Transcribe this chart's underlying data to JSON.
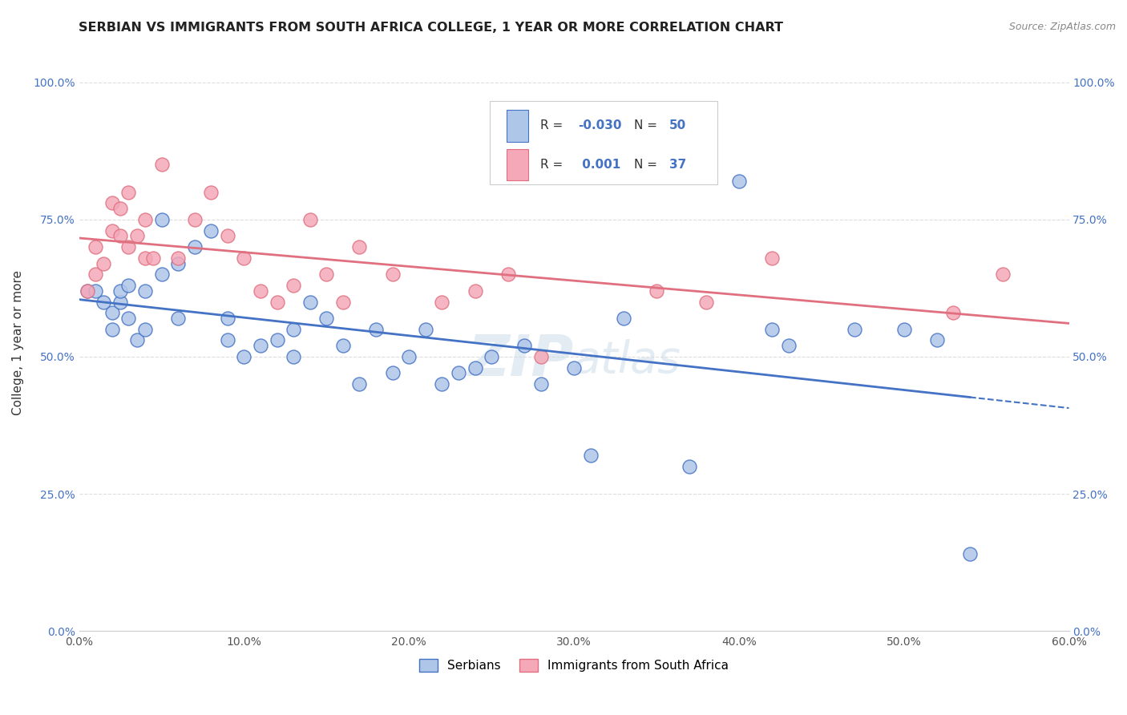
{
  "title": "SERBIAN VS IMMIGRANTS FROM SOUTH AFRICA COLLEGE, 1 YEAR OR MORE CORRELATION CHART",
  "source": "Source: ZipAtlas.com",
  "ylabel": "College, 1 year or more",
  "xlim": [
    0.0,
    0.6
  ],
  "ylim": [
    0.0,
    1.05
  ],
  "ytick_labels": [
    "0.0%",
    "25.0%",
    "50.0%",
    "75.0%",
    "100.0%"
  ],
  "ytick_values": [
    0.0,
    0.25,
    0.5,
    0.75,
    1.0
  ],
  "xtick_values": [
    0.0,
    0.1,
    0.2,
    0.3,
    0.4,
    0.5,
    0.6
  ],
  "xtick_labels": [
    "0.0%",
    "10.0%",
    "20.0%",
    "30.0%",
    "40.0%",
    "50.0%",
    "60.0%"
  ],
  "legend_labels": [
    "Serbians",
    "Immigrants from South Africa"
  ],
  "R_serbian": "-0.030",
  "N_serbian": "50",
  "R_south_africa": "0.001",
  "N_south_africa": "37",
  "color_serbian": "#aec6e8",
  "color_south_africa": "#f4a8b8",
  "line_color_serbian": "#4472c4",
  "line_color_south_africa": "#e07080",
  "serbian_x": [
    0.005,
    0.01,
    0.015,
    0.02,
    0.02,
    0.025,
    0.025,
    0.03,
    0.03,
    0.035,
    0.04,
    0.04,
    0.05,
    0.05,
    0.06,
    0.06,
    0.07,
    0.08,
    0.09,
    0.09,
    0.1,
    0.11,
    0.12,
    0.13,
    0.13,
    0.14,
    0.15,
    0.16,
    0.17,
    0.18,
    0.19,
    0.2,
    0.21,
    0.22,
    0.23,
    0.24,
    0.25,
    0.27,
    0.28,
    0.3,
    0.31,
    0.33,
    0.37,
    0.4,
    0.42,
    0.43,
    0.47,
    0.5,
    0.52,
    0.54
  ],
  "serbian_y": [
    0.62,
    0.62,
    0.6,
    0.55,
    0.58,
    0.6,
    0.62,
    0.57,
    0.63,
    0.53,
    0.55,
    0.62,
    0.75,
    0.65,
    0.67,
    0.57,
    0.7,
    0.73,
    0.57,
    0.53,
    0.5,
    0.52,
    0.53,
    0.55,
    0.5,
    0.6,
    0.57,
    0.52,
    0.45,
    0.55,
    0.47,
    0.5,
    0.55,
    0.45,
    0.47,
    0.48,
    0.5,
    0.52,
    0.45,
    0.48,
    0.32,
    0.57,
    0.3,
    0.82,
    0.55,
    0.52,
    0.55,
    0.55,
    0.53,
    0.14
  ],
  "south_africa_x": [
    0.005,
    0.01,
    0.01,
    0.015,
    0.02,
    0.02,
    0.025,
    0.025,
    0.03,
    0.03,
    0.035,
    0.04,
    0.04,
    0.045,
    0.05,
    0.06,
    0.07,
    0.08,
    0.09,
    0.1,
    0.11,
    0.12,
    0.13,
    0.14,
    0.15,
    0.16,
    0.17,
    0.19,
    0.22,
    0.24,
    0.26,
    0.28,
    0.35,
    0.38,
    0.42,
    0.53,
    0.56
  ],
  "south_africa_y": [
    0.62,
    0.65,
    0.7,
    0.67,
    0.78,
    0.73,
    0.77,
    0.72,
    0.8,
    0.7,
    0.72,
    0.75,
    0.68,
    0.68,
    0.85,
    0.68,
    0.75,
    0.8,
    0.72,
    0.68,
    0.62,
    0.6,
    0.63,
    0.75,
    0.65,
    0.6,
    0.7,
    0.65,
    0.6,
    0.62,
    0.65,
    0.5,
    0.62,
    0.6,
    0.68,
    0.58,
    0.65
  ],
  "background_color": "#ffffff",
  "grid_color": "#dddddd",
  "title_fontsize": 11.5,
  "axis_label_fontsize": 11,
  "tick_fontsize": 10,
  "watermark_text": "ZIP atlas",
  "watermark_color": "#c8d8e8"
}
